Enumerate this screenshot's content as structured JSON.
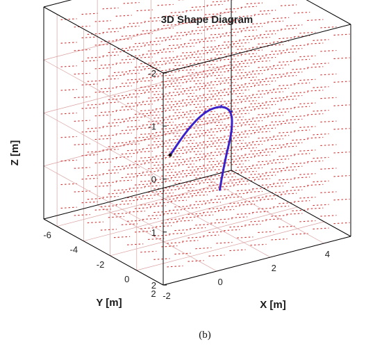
{
  "chart_data": {
    "type": "line",
    "title": "3D Shape Diagram",
    "xlabel": "X [m]",
    "ylabel": "Y [m]",
    "zlabel": "Z [m]",
    "x_ticks": [
      "-2",
      "0",
      "2",
      "4"
    ],
    "y_ticks": [
      "-6",
      "-4",
      "-2",
      "0",
      "2"
    ],
    "z_ticks": [
      "-2",
      "-1",
      "0",
      "1",
      "2"
    ],
    "xlim": [
      -2,
      5
    ],
    "ylim": [
      -7,
      2
    ],
    "zlim": [
      -2,
      2
    ],
    "z_reversed": true,
    "grid": true,
    "background": "vector field of short dashed red segments filling the axes volume",
    "series": [
      {
        "color": "#3b22c8",
        "points": [
          {
            "x": -0.6,
            "y": -0.3,
            "z": 0.05
          },
          {
            "x": 0.3,
            "y": -0.8,
            "z": -0.25
          },
          {
            "x": 1.2,
            "y": -1.3,
            "z": -0.4
          },
          {
            "x": 2.0,
            "y": -1.7,
            "z": -0.35
          },
          {
            "x": 2.5,
            "y": -1.9,
            "z": -0.15
          },
          {
            "x": 2.4,
            "y": -1.7,
            "z": 0.2
          },
          {
            "x": 2.0,
            "y": -1.3,
            "z": 0.5
          },
          {
            "x": 1.7,
            "y": -1.0,
            "z": 0.8
          },
          {
            "x": 1.5,
            "y": -0.8,
            "z": 1.05
          }
        ]
      }
    ]
  },
  "caption": "(b)"
}
